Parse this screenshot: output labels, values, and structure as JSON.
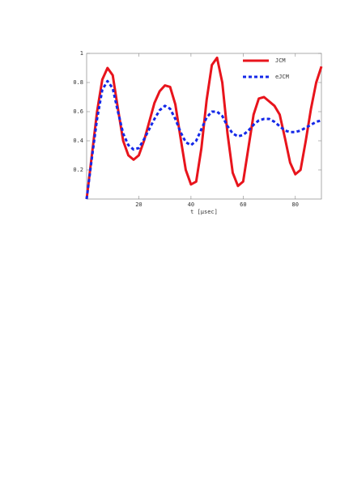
{
  "chart_data": {
    "type": "line",
    "x_label": "t [μsec]",
    "x": [
      0,
      2,
      4,
      6,
      8,
      10,
      12,
      14,
      16,
      18,
      20,
      22,
      24,
      26,
      28,
      30,
      32,
      34,
      36,
      38,
      40,
      42,
      44,
      46,
      48,
      50,
      52,
      54,
      56,
      58,
      60,
      62,
      64,
      66,
      68,
      70,
      72,
      74,
      76,
      78,
      80,
      82,
      84,
      86,
      88,
      90
    ],
    "series": [
      {
        "name": "JCM",
        "color": "#e8141c",
        "dash": false,
        "values": [
          0,
          0.3,
          0.6,
          0.82,
          0.9,
          0.85,
          0.62,
          0.4,
          0.3,
          0.27,
          0.3,
          0.4,
          0.53,
          0.66,
          0.74,
          0.78,
          0.77,
          0.65,
          0.42,
          0.2,
          0.1,
          0.12,
          0.35,
          0.68,
          0.92,
          0.97,
          0.8,
          0.45,
          0.18,
          0.09,
          0.12,
          0.35,
          0.58,
          0.69,
          0.7,
          0.67,
          0.64,
          0.58,
          0.42,
          0.25,
          0.17,
          0.2,
          0.4,
          0.62,
          0.8,
          0.91
        ]
      },
      {
        "name": "eJCM",
        "color": "#1428e8",
        "dash": true,
        "values": [
          0,
          0.28,
          0.55,
          0.75,
          0.81,
          0.76,
          0.6,
          0.45,
          0.37,
          0.34,
          0.35,
          0.41,
          0.48,
          0.55,
          0.61,
          0.64,
          0.62,
          0.55,
          0.46,
          0.39,
          0.37,
          0.4,
          0.48,
          0.56,
          0.6,
          0.6,
          0.57,
          0.5,
          0.45,
          0.43,
          0.44,
          0.47,
          0.51,
          0.54,
          0.55,
          0.55,
          0.53,
          0.5,
          0.47,
          0.46,
          0.46,
          0.47,
          0.49,
          0.51,
          0.53,
          0.54
        ]
      }
    ],
    "xlim": [
      0,
      90
    ],
    "xticks": [
      20,
      40,
      60,
      80
    ],
    "ylim": [
      0,
      1
    ],
    "yticks": [
      0.2,
      0.4,
      0.6,
      0.8,
      1
    ],
    "legend": "top-right"
  }
}
